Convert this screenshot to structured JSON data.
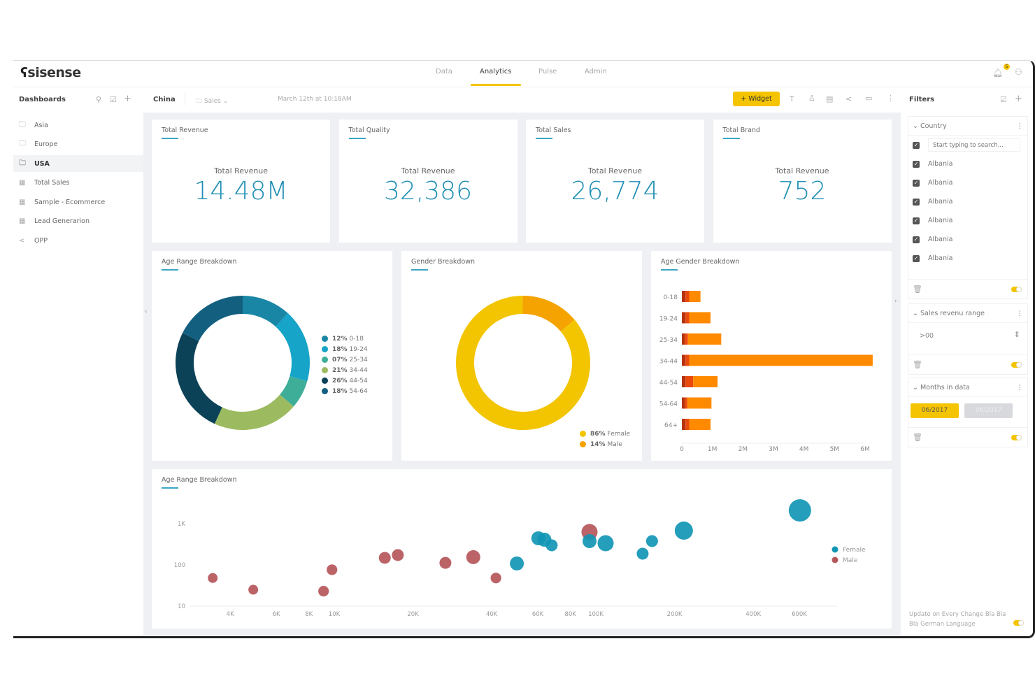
{
  "header": {
    "logo": "sisense",
    "nav": [
      {
        "label": "Data"
      },
      {
        "label": "Analytics",
        "active": true
      },
      {
        "label": "Pulse"
      },
      {
        "label": "Admin"
      }
    ],
    "notification_count": "5"
  },
  "sidebar": {
    "title": "Dashboards",
    "items": [
      {
        "label": "Asia",
        "icon": "folder-icon"
      },
      {
        "label": "Europe",
        "icon": "folder-icon"
      },
      {
        "label": "USA",
        "icon": "folder-icon",
        "active": true
      },
      {
        "label": "Total Sales",
        "icon": "dashboard-icon"
      },
      {
        "label": "Sample - Ecommerce",
        "icon": "dashboard-icon"
      },
      {
        "label": "Lead Generarion",
        "icon": "dashboard-icon"
      },
      {
        "label": "OPP",
        "icon": "share-icon"
      }
    ]
  },
  "toolbar": {
    "dashboard": "China",
    "folder": "Sales",
    "timestamp": "March 12th at 10:18AM",
    "widget_button": "+ Widget",
    "accent": "#f5c400"
  },
  "kpis": [
    {
      "title": "Total Revenue",
      "label": "Total Revenue",
      "value": "14.48M"
    },
    {
      "title": "Total Quality",
      "label": "Total Revenue",
      "value": "32,386"
    },
    {
      "title": "Total Sales",
      "label": "Total Revenue",
      "value": "26,774"
    },
    {
      "title": "Total Brand",
      "label": "Total Revenue",
      "value": "752"
    }
  ],
  "filters": {
    "title": "Filters",
    "country": {
      "title": "Country",
      "search_placeholder": "Start typing to search...",
      "items": [
        "Albania",
        "Albania",
        "Albania",
        "Albania",
        "Albania",
        "Albania"
      ]
    },
    "sales_range": {
      "title": "Sales revenu range",
      "value": ">00"
    },
    "months": {
      "title": "Months in data",
      "from": "06/2017",
      "to": "06/2017"
    },
    "footer": "Update on Every Change Bla Bla Bla German Language"
  },
  "chart_data": [
    {
      "type": "pie",
      "donut": true,
      "title": "Age Range Breakdown",
      "slices": [
        {
          "pct": "12%",
          "value": 12,
          "label": "0-18",
          "color": "#1a86a6"
        },
        {
          "pct": "18%",
          "value": 18,
          "label": "19-24",
          "color": "#16a4c8"
        },
        {
          "pct": "07%",
          "value": 7,
          "label": "25-34",
          "color": "#3fae98"
        },
        {
          "pct": "21%",
          "value": 21,
          "label": "34-44",
          "color": "#9cbb60"
        },
        {
          "pct": "26%",
          "value": 26,
          "label": "44-54",
          "color": "#0c4258"
        },
        {
          "pct": "18%",
          "value": 18,
          "label": "54-64",
          "color": "#135f80"
        }
      ]
    },
    {
      "type": "pie",
      "donut": true,
      "title": "Gender Breakdown",
      "slices": [
        {
          "pct": "86%",
          "value": 86,
          "label": "Female",
          "color": "#f2c500"
        },
        {
          "pct": "14%",
          "value": 14,
          "label": "Male",
          "color": "#f5a300"
        }
      ]
    },
    {
      "type": "bar",
      "orientation": "horizontal",
      "stacked": true,
      "title": "Age Gender Breakdown",
      "categories": [
        "0-18",
        "19-24",
        "25-34",
        "34-44",
        "44-54",
        "54-64",
        "64+"
      ],
      "series": [
        {
          "values": [
            0.12,
            0.12,
            0.1,
            0.12,
            0.12,
            0.1,
            0.12
          ],
          "color": "#b5340f"
        },
        {
          "values": [
            0.12,
            0.12,
            0.1,
            0.12,
            0.25,
            0.08,
            0.12
          ],
          "color": "#e9490d"
        },
        {
          "values": [
            0.37,
            0.7,
            1.09,
            6.01,
            0.8,
            0.79,
            0.7
          ],
          "color": "#ff8a00"
        }
      ],
      "xlim": [
        0,
        6000000
      ],
      "xticks": [
        "0",
        "1M",
        "2M",
        "3M",
        "4M",
        "5M",
        "6M"
      ]
    },
    {
      "type": "scatter",
      "bubble": true,
      "title": "Age Range Breakdown",
      "xscale": "log",
      "yscale": "log",
      "xlim": [
        3000,
        900000
      ],
      "ylim": [
        10,
        3000
      ],
      "xticks": [
        {
          "v": 4000,
          "l": "4K"
        },
        {
          "v": 6000,
          "l": "6K"
        },
        {
          "v": 8000,
          "l": "8K"
        },
        {
          "v": 10000,
          "l": "10K"
        },
        {
          "v": 20000,
          "l": "20K"
        },
        {
          "v": 40000,
          "l": "40K"
        },
        {
          "v": 60000,
          "l": "60K"
        },
        {
          "v": 80000,
          "l": "80K"
        },
        {
          "v": 100000,
          "l": "100K"
        },
        {
          "v": 200000,
          "l": "200K"
        },
        {
          "v": 400000,
          "l": "400K"
        },
        {
          "v": 600000,
          "l": "600K"
        }
      ],
      "yticks": [
        {
          "v": 10,
          "l": "10"
        },
        {
          "v": 100,
          "l": "100"
        },
        {
          "v": 1000,
          "l": "1K"
        }
      ],
      "series": [
        {
          "name": "Female",
          "color": "#1196b4",
          "points": [
            [
              49900,
              108,
              2
            ],
            [
              60300,
              441,
              2
            ],
            [
              63600,
              407,
              2
            ],
            [
              67800,
              298,
              1.5
            ],
            [
              94600,
              377,
              2
            ],
            [
              109000,
              335,
              2.5
            ],
            [
              151000,
              187,
              1.5
            ],
            [
              164000,
              377,
              1.5
            ],
            [
              217000,
              676,
              3
            ],
            [
              603000,
              2090,
              4
            ]
          ]
        },
        {
          "name": "Male",
          "color": "#b5565a",
          "points": [
            [
              3430,
              48,
              1
            ],
            [
              4900,
              25,
              1
            ],
            [
              9100,
              23,
              1.2
            ],
            [
              9800,
              76,
              1.2
            ],
            [
              15600,
              148,
              1.5
            ],
            [
              17500,
              173,
              1.5
            ],
            [
              26600,
              112,
              1.5
            ],
            [
              34000,
              154,
              2
            ],
            [
              41500,
              48,
              1.2
            ],
            [
              94600,
              627,
              2.5
            ]
          ]
        }
      ]
    }
  ]
}
